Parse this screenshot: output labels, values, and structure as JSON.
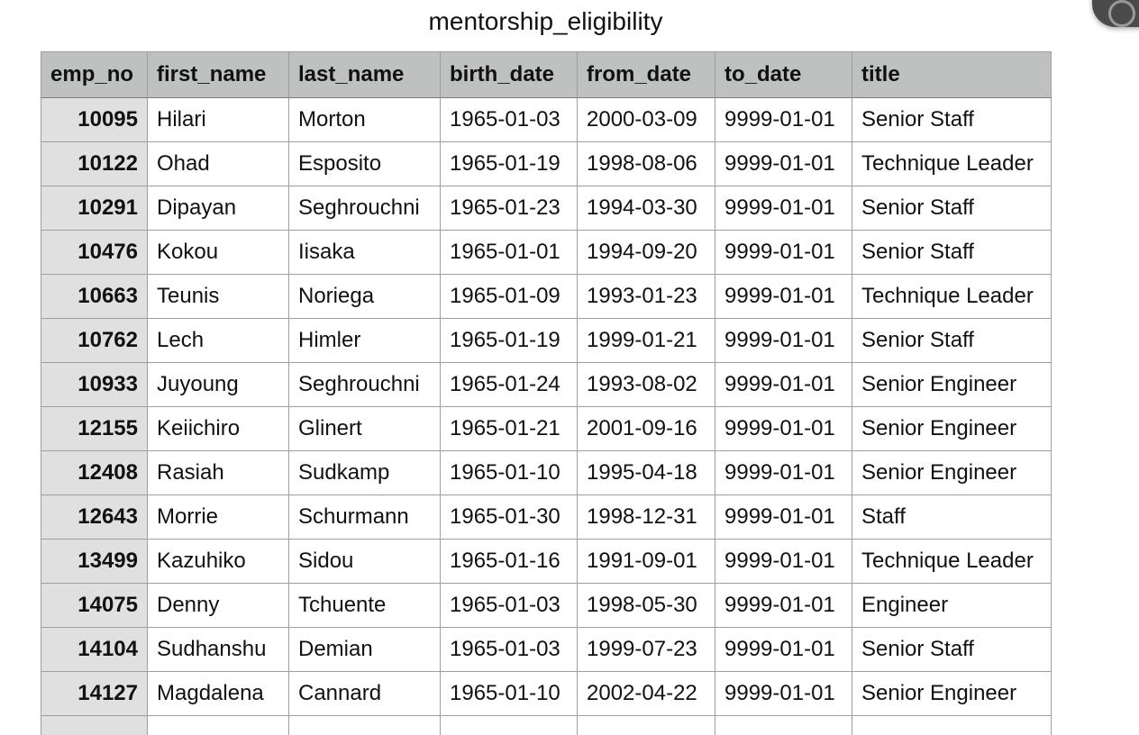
{
  "sheet": {
    "title": "mentorship_eligibility"
  },
  "table": {
    "headers": [
      "emp_no",
      "first_name",
      "last_name",
      "birth_date",
      "from_date",
      "to_date",
      "title"
    ],
    "rows": [
      [
        "10095",
        "Hilari",
        "Morton",
        "1965-01-03",
        "2000-03-09",
        "9999-01-01",
        "Senior Staff"
      ],
      [
        "10122",
        "Ohad",
        "Esposito",
        "1965-01-19",
        "1998-08-06",
        "9999-01-01",
        "Technique Leader"
      ],
      [
        "10291",
        "Dipayan",
        "Seghrouchni",
        "1965-01-23",
        "1994-03-30",
        "9999-01-01",
        "Senior Staff"
      ],
      [
        "10476",
        "Kokou",
        "Iisaka",
        "1965-01-01",
        "1994-09-20",
        "9999-01-01",
        "Senior Staff"
      ],
      [
        "10663",
        "Teunis",
        "Noriega",
        "1965-01-09",
        "1993-01-23",
        "9999-01-01",
        "Technique Leader"
      ],
      [
        "10762",
        "Lech",
        "Himler",
        "1965-01-19",
        "1999-01-21",
        "9999-01-01",
        "Senior Staff"
      ],
      [
        "10933",
        "Juyoung",
        "Seghrouchni",
        "1965-01-24",
        "1993-08-02",
        "9999-01-01",
        "Senior Engineer"
      ],
      [
        "12155",
        "Keiichiro",
        "Glinert",
        "1965-01-21",
        "2001-09-16",
        "9999-01-01",
        "Senior Engineer"
      ],
      [
        "12408",
        "Rasiah",
        "Sudkamp",
        "1965-01-10",
        "1995-04-18",
        "9999-01-01",
        "Senior Engineer"
      ],
      [
        "12643",
        "Morrie",
        "Schurmann",
        "1965-01-30",
        "1998-12-31",
        "9999-01-01",
        "Staff"
      ],
      [
        "13499",
        "Kazuhiko",
        "Sidou",
        "1965-01-16",
        "1991-09-01",
        "9999-01-01",
        "Technique Leader"
      ],
      [
        "14075",
        "Denny",
        "Tchuente",
        "1965-01-03",
        "1998-05-30",
        "9999-01-01",
        "Engineer"
      ],
      [
        "14104",
        "Sudhanshu",
        "Demian",
        "1965-01-03",
        "1999-07-23",
        "9999-01-01",
        "Senior Staff"
      ],
      [
        "14127",
        "Magdalena",
        "Cannard",
        "1965-01-10",
        "2002-04-22",
        "9999-01-01",
        "Senior Engineer"
      ],
      [
        "",
        "",
        "",
        "",
        "",
        "",
        ""
      ]
    ]
  },
  "corner_widget": {
    "icon": "circle-icon"
  },
  "colors": {
    "header_bg": "#bfc1c0",
    "key_column_bg": "#e0e0e0",
    "grid_line": "#9e9e9e"
  }
}
